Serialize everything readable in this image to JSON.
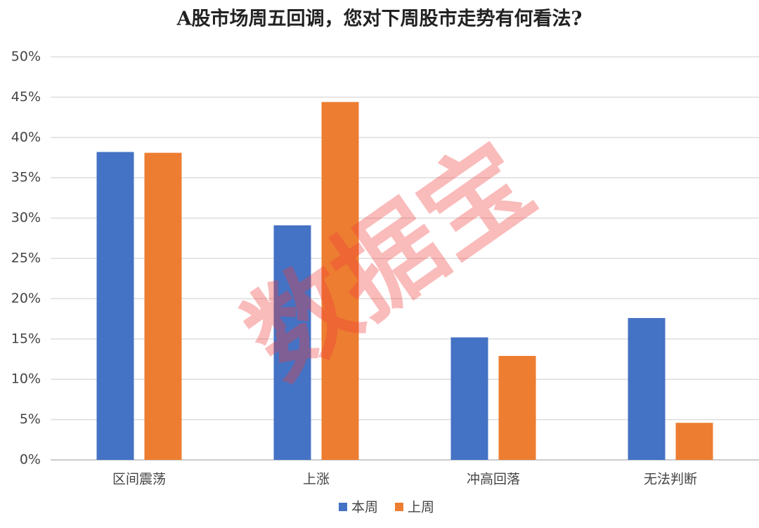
{
  "chart_data": {
    "type": "bar",
    "title": "A股市场周五回调，您对下周股市走势有何看法?",
    "categories": [
      "区间震荡",
      "上涨",
      "冲高回落",
      "无法判断"
    ],
    "series": [
      {
        "name": "本周",
        "color": "#4472c4",
        "values": [
          38.2,
          29.1,
          15.2,
          17.6
        ]
      },
      {
        "name": "上周",
        "color": "#ed7d31",
        "values": [
          38.1,
          44.4,
          12.9,
          4.6
        ]
      }
    ],
    "ylim": [
      0,
      50
    ],
    "yticks": [
      {
        "value": 0,
        "label": "0%"
      },
      {
        "value": 5,
        "label": "5%"
      },
      {
        "value": 10,
        "label": "10%"
      },
      {
        "value": 15,
        "label": "15%"
      },
      {
        "value": 20,
        "label": "20%"
      },
      {
        "value": 25,
        "label": "25%"
      },
      {
        "value": 30,
        "label": "30%"
      },
      {
        "value": 35,
        "label": "35%"
      },
      {
        "value": 40,
        "label": "40%"
      },
      {
        "value": 45,
        "label": "45%"
      },
      {
        "value": 50,
        "label": "50%"
      }
    ],
    "grid": true,
    "legend": "bottom",
    "watermark": "数据宝"
  }
}
